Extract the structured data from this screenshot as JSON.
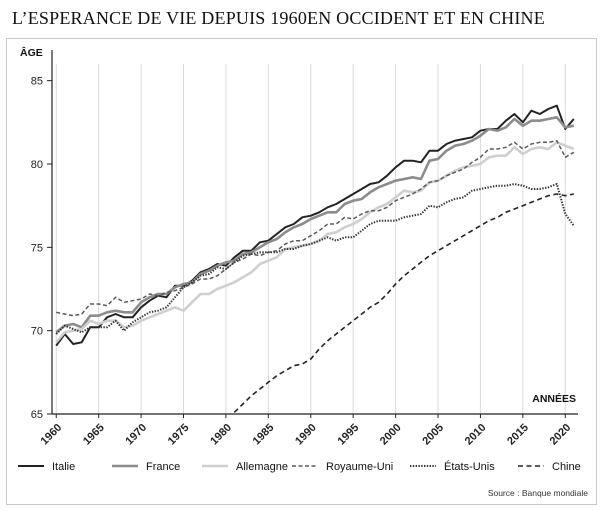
{
  "title": "L’ESPERANCE DE VIE DEPUIS 1960EN OCCIDENT ET EN CHINE",
  "chart_data": {
    "type": "line",
    "ylabel": "ÂGE",
    "xlabel": "ANNÉES",
    "xlim": [
      1959.5,
      2021.5
    ],
    "ylim": [
      65,
      86
    ],
    "x_ticks": [
      1960,
      1965,
      1970,
      1975,
      1980,
      1985,
      1990,
      1995,
      2000,
      2005,
      2010,
      2015,
      2020
    ],
    "y_ticks": [
      65,
      70,
      75,
      80,
      85
    ],
    "grid": "vertical",
    "legend_position": "bottom",
    "source": "Source : Banque mondiale",
    "x": [
      1960,
      1961,
      1962,
      1963,
      1964,
      1965,
      1966,
      1967,
      1968,
      1969,
      1970,
      1971,
      1972,
      1973,
      1974,
      1975,
      1976,
      1977,
      1978,
      1979,
      1980,
      1981,
      1982,
      1983,
      1984,
      1985,
      1986,
      1987,
      1988,
      1989,
      1990,
      1991,
      1992,
      1993,
      1994,
      1995,
      1996,
      1997,
      1998,
      1999,
      2000,
      2001,
      2002,
      2003,
      2004,
      2005,
      2006,
      2007,
      2008,
      2009,
      2010,
      2011,
      2012,
      2013,
      2014,
      2015,
      2016,
      2017,
      2018,
      2019,
      2020,
      2021
    ],
    "series": [
      {
        "name": "Italie",
        "color": "#222222",
        "width": 2.0,
        "dash": "",
        "values": [
          69.1,
          69.8,
          69.2,
          69.3,
          70.2,
          70.2,
          70.8,
          71.0,
          70.8,
          70.8,
          71.4,
          71.8,
          72.1,
          72.0,
          72.7,
          72.7,
          73.0,
          73.5,
          73.7,
          74.0,
          73.9,
          74.4,
          74.8,
          74.8,
          75.3,
          75.4,
          75.8,
          76.2,
          76.4,
          76.8,
          76.9,
          77.1,
          77.4,
          77.6,
          77.9,
          78.2,
          78.5,
          78.8,
          78.9,
          79.3,
          79.8,
          80.2,
          80.2,
          80.1,
          80.8,
          80.8,
          81.2,
          81.4,
          81.5,
          81.6,
          82.0,
          82.1,
          82.1,
          82.6,
          83.0,
          82.5,
          83.2,
          83.0,
          83.3,
          83.5,
          82.1,
          82.7
        ]
      },
      {
        "name": "France",
        "color": "#8c8c8c",
        "width": 2.6,
        "dash": "",
        "values": [
          69.9,
          70.3,
          70.4,
          70.2,
          70.9,
          70.9,
          71.1,
          71.2,
          71.1,
          71.1,
          71.7,
          72.0,
          72.2,
          72.2,
          72.6,
          72.8,
          72.9,
          73.4,
          73.6,
          73.9,
          74.1,
          74.2,
          74.6,
          74.7,
          75.0,
          75.3,
          75.5,
          75.9,
          76.2,
          76.4,
          76.7,
          76.9,
          77.1,
          77.1,
          77.6,
          77.8,
          77.9,
          78.3,
          78.6,
          78.8,
          79.0,
          79.1,
          79.2,
          79.1,
          80.2,
          80.3,
          80.8,
          81.1,
          81.2,
          81.4,
          81.7,
          82.1,
          82.0,
          82.2,
          82.7,
          82.3,
          82.6,
          82.6,
          82.7,
          82.8,
          82.2,
          82.3
        ]
      },
      {
        "name": "Allemagne",
        "color": "#cfcfcf",
        "width": 2.6,
        "dash": "",
        "values": [
          69.3,
          69.9,
          70.0,
          70.1,
          70.6,
          70.4,
          70.6,
          70.6,
          70.2,
          70.3,
          70.6,
          70.8,
          71.0,
          71.2,
          71.4,
          71.2,
          71.7,
          72.2,
          72.2,
          72.5,
          72.7,
          72.9,
          73.2,
          73.5,
          74.0,
          74.2,
          74.4,
          74.9,
          75.0,
          75.1,
          75.2,
          75.4,
          75.8,
          75.9,
          76.2,
          76.4,
          76.7,
          77.1,
          77.4,
          77.6,
          78.0,
          78.4,
          78.3,
          78.4,
          78.9,
          79.0,
          79.3,
          79.6,
          79.8,
          79.9,
          80.0,
          80.4,
          80.5,
          80.5,
          81.0,
          80.6,
          80.9,
          81.0,
          80.9,
          81.3,
          81.1,
          80.9
        ]
      },
      {
        "name": "Royaume-Uni",
        "color": "#5a5a5a",
        "width": 1.5,
        "dash": "4 2.5",
        "values": [
          71.1,
          71.0,
          70.9,
          71.0,
          71.6,
          71.6,
          71.5,
          72.0,
          71.7,
          71.8,
          71.9,
          72.2,
          72.1,
          72.3,
          72.4,
          72.6,
          72.8,
          73.1,
          73.1,
          73.3,
          73.7,
          74.1,
          74.3,
          74.6,
          74.5,
          74.7,
          74.8,
          75.2,
          75.4,
          75.4,
          75.7,
          76.0,
          76.4,
          76.4,
          76.8,
          76.7,
          77.0,
          77.2,
          77.2,
          77.4,
          77.8,
          78.0,
          78.2,
          78.5,
          78.9,
          79.0,
          79.3,
          79.5,
          79.7,
          80.1,
          80.4,
          80.9,
          80.9,
          81.0,
          81.3,
          80.9,
          81.2,
          81.3,
          81.3,
          81.4,
          80.4,
          80.7
        ]
      },
      {
        "name": "États-Unis",
        "color": "#333333",
        "width": 2.0,
        "dash": "1.4 1.4",
        "values": [
          69.8,
          70.3,
          70.1,
          69.9,
          70.2,
          70.2,
          70.2,
          70.6,
          70.0,
          70.5,
          70.8,
          71.1,
          71.2,
          71.4,
          72.0,
          72.6,
          72.9,
          73.3,
          73.4,
          73.8,
          73.7,
          74.1,
          74.5,
          74.6,
          74.7,
          74.7,
          74.7,
          74.9,
          74.9,
          75.1,
          75.2,
          75.4,
          75.6,
          75.4,
          75.6,
          75.6,
          76.0,
          76.4,
          76.6,
          76.6,
          76.6,
          76.8,
          76.9,
          77.0,
          77.5,
          77.4,
          77.7,
          77.9,
          78.0,
          78.4,
          78.5,
          78.6,
          78.7,
          78.7,
          78.8,
          78.7,
          78.5,
          78.5,
          78.6,
          78.8,
          77.0,
          76.3
        ]
      },
      {
        "name": "Chine",
        "color": "#222222",
        "width": 1.6,
        "dash": "5 3.5",
        "values": [
          null,
          null,
          null,
          null,
          null,
          null,
          null,
          null,
          null,
          null,
          null,
          null,
          null,
          null,
          null,
          null,
          null,
          null,
          null,
          null,
          null,
          65.1,
          65.6,
          66.1,
          66.5,
          66.9,
          67.3,
          67.6,
          67.9,
          68.0,
          68.3,
          68.9,
          69.4,
          69.8,
          70.2,
          70.6,
          71.0,
          71.4,
          71.7,
          72.2,
          72.8,
          73.3,
          73.7,
          74.1,
          74.5,
          74.8,
          75.1,
          75.4,
          75.7,
          76.0,
          76.3,
          76.6,
          76.8,
          77.1,
          77.3,
          77.5,
          77.7,
          77.9,
          78.1,
          78.2,
          78.1,
          78.2
        ]
      }
    ]
  }
}
